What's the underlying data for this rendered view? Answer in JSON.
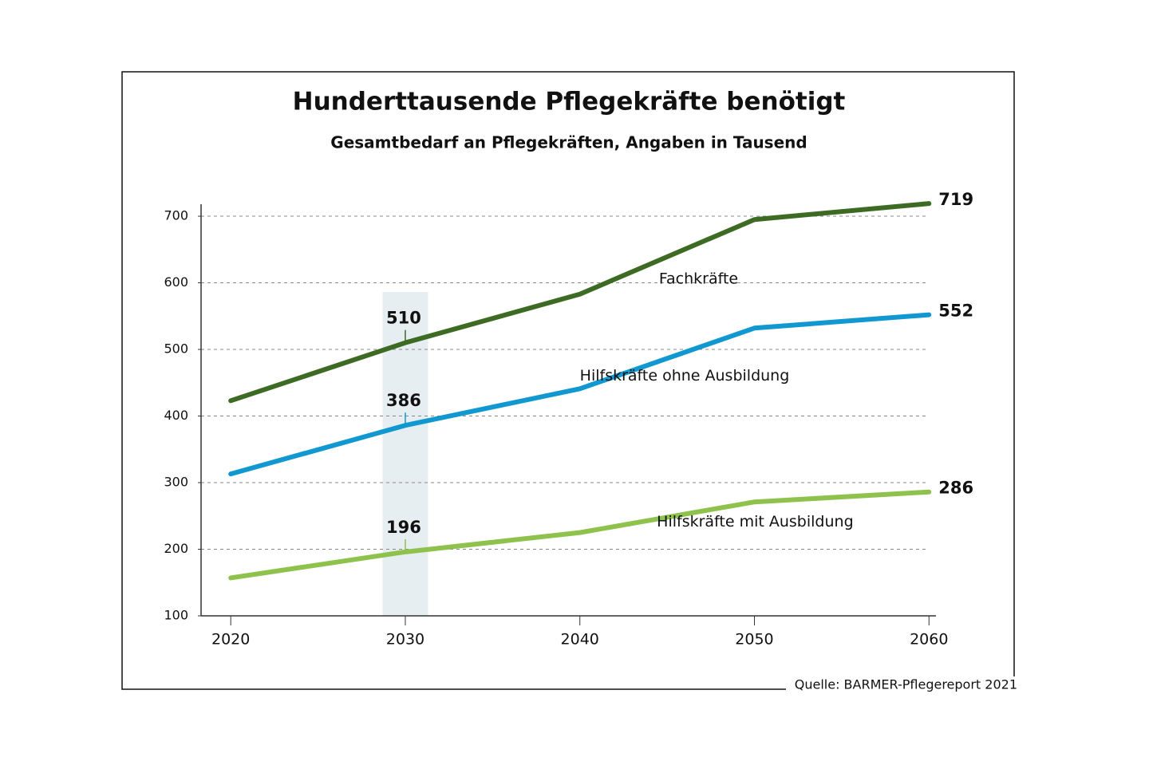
{
  "chart_data": {
    "type": "line",
    "title": "Hunderttausende Pflegekräfte benötigt",
    "subtitle": "Gesamtbedarf an Pflegekräften, Angaben in Tausend",
    "source": "Quelle: BARMER-Pflegereport 2021",
    "x": [
      2020,
      2030,
      2040,
      2050,
      2060
    ],
    "series": [
      {
        "name": "Fachkräfte",
        "color": "#3d6b23",
        "values": [
          423,
          510,
          583,
          695,
          719
        ],
        "labeled_indices": [
          1,
          4
        ]
      },
      {
        "name": "Hilfskräfte ohne Ausbildung",
        "color": "#1198d0",
        "values": [
          313,
          386,
          441,
          532,
          552
        ],
        "labeled_indices": [
          1,
          4
        ]
      },
      {
        "name": "Hilfskräfte mit Ausbildung",
        "color": "#8fc24c",
        "values": [
          157,
          196,
          225,
          271,
          286
        ],
        "labeled_indices": [
          1,
          4
        ]
      }
    ],
    "highlight_x": 2030,
    "xlim": [
      2018.3,
      2060.4
    ],
    "ylim": [
      100,
      718
    ],
    "xticks": [
      2020,
      2030,
      2040,
      2050,
      2060
    ],
    "yticks": [
      100,
      200,
      300,
      400,
      500,
      600,
      700
    ],
    "grid": true
  }
}
